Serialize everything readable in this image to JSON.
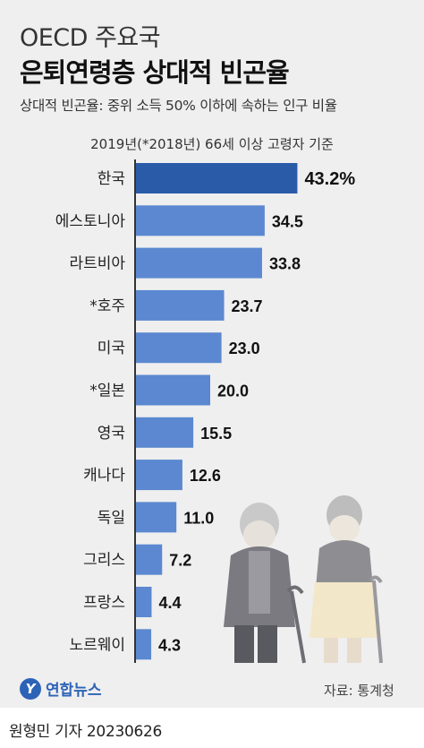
{
  "header": {
    "title_line1": "OECD 주요국",
    "title_line2": "은퇴연령층 상대적 빈곤율",
    "subtitle": "상대적 빈곤율: 중위 소득 50% 이하에 속하는 인구 비율",
    "basis": "2019년(*2018년) 66세 이상 고령자 기준"
  },
  "chart_data": {
    "type": "bar",
    "orientation": "horizontal",
    "categories": [
      "한국",
      "에스토니아",
      "라트비아",
      "*호주",
      "미국",
      "*일본",
      "영국",
      "캐나다",
      "독일",
      "그리스",
      "프랑스",
      "노르웨이"
    ],
    "values": [
      43.2,
      34.5,
      33.8,
      23.7,
      23.0,
      20.0,
      15.5,
      12.6,
      11.0,
      7.2,
      4.4,
      4.3
    ],
    "value_labels": [
      "43.2%",
      "34.5",
      "33.8",
      "23.7",
      "23.0",
      "20.0",
      "15.5",
      "12.6",
      "11.0",
      "7.2",
      "4.4",
      "4.3"
    ],
    "unit": "%",
    "highlight_index": 0,
    "colors": {
      "highlight": "#2a5ba8",
      "bar": "#5b88d0"
    }
  },
  "footer": {
    "logo_mark": "Y",
    "logo_text": "연합뉴스",
    "source": "자료: 통계청",
    "credit": "원형민 기자  20230626"
  }
}
